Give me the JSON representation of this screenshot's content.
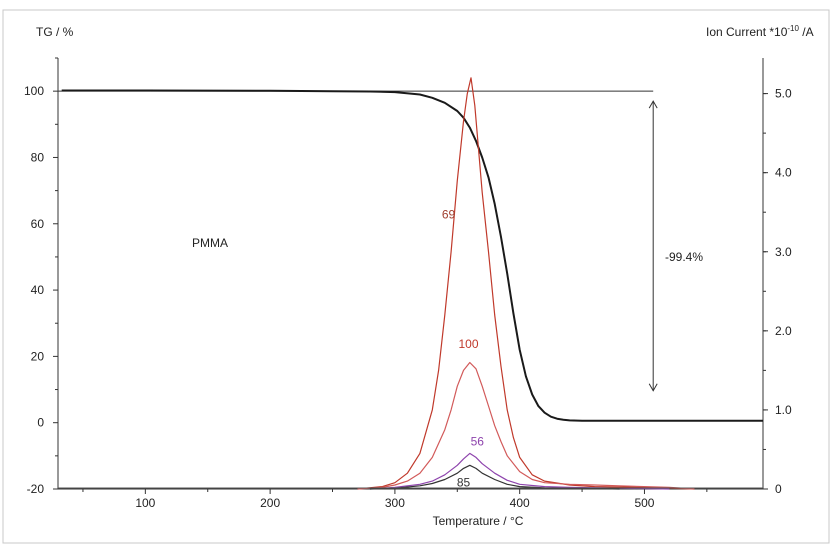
{
  "chart_data": {
    "type": "line",
    "ylabel_left": "TG / %",
    "ylabel_right": "Ion Current *10",
    "ylabel_right_exp": "-10",
    "ylabel_right_unit": " /A",
    "xlabel": "Temperature / °C",
    "xlim": [
      30,
      595
    ],
    "ylim_left": [
      -20,
      110
    ],
    "ylim_right": [
      0,
      5.45
    ],
    "x_ticks": [
      100,
      200,
      300,
      400,
      500
    ],
    "y_left_ticks": [
      -20,
      0,
      20,
      40,
      60,
      80,
      100
    ],
    "y_right_ticks": [
      0,
      1.0,
      2.0,
      3.0,
      4.0,
      5.0
    ],
    "y_right_tick_labels": [
      "0",
      "1.0",
      "2.0",
      "3.0",
      "4.0",
      "5.0"
    ],
    "annotations": {
      "sample": "PMMA",
      "mass_loss": "-99.4%",
      "mass_loss_range": [
        100,
        0.6
      ],
      "mass_loss_x": 507
    },
    "series": [
      {
        "name": "TG",
        "axis": "left",
        "color": "#1a1a1a",
        "x": [
          33,
          100,
          200,
          250,
          280,
          300,
          320,
          330,
          340,
          350,
          355,
          360,
          365,
          370,
          375,
          380,
          385,
          390,
          395,
          400,
          405,
          410,
          415,
          420,
          425,
          430,
          435,
          440,
          450,
          500,
          550,
          595
        ],
        "y": [
          100.2,
          100.2,
          100.1,
          100.0,
          99.9,
          99.7,
          99.0,
          98.0,
          96.5,
          94.0,
          92.0,
          89.0,
          85.0,
          80.0,
          74.0,
          66.0,
          56.0,
          45.0,
          33.0,
          22.0,
          14.0,
          8.5,
          5.0,
          3.0,
          1.8,
          1.2,
          0.9,
          0.7,
          0.6,
          0.6,
          0.6,
          0.6
        ]
      },
      {
        "name": "69",
        "axis": "right",
        "color": "#c0392b",
        "x": [
          270,
          290,
          300,
          310,
          320,
          330,
          335,
          340,
          345,
          350,
          355,
          358,
          361,
          364,
          367,
          370,
          375,
          380,
          385,
          390,
          395,
          400,
          410,
          420,
          440,
          460,
          500,
          540
        ],
        "y": [
          0.0,
          0.03,
          0.08,
          0.2,
          0.45,
          1.0,
          1.5,
          2.2,
          3.0,
          3.9,
          4.65,
          5.0,
          5.2,
          4.85,
          4.3,
          3.75,
          3.0,
          2.2,
          1.55,
          1.0,
          0.65,
          0.4,
          0.18,
          0.1,
          0.05,
          0.03,
          0.02,
          0.0
        ]
      },
      {
        "name": "100",
        "axis": "right",
        "color": "#d25a5a",
        "x": [
          270,
          290,
          300,
          310,
          320,
          330,
          340,
          345,
          350,
          355,
          360,
          365,
          370,
          375,
          380,
          385,
          390,
          400,
          410,
          420,
          440,
          460,
          480,
          520,
          540
        ],
        "y": [
          0.0,
          0.02,
          0.05,
          0.1,
          0.2,
          0.4,
          0.75,
          1.0,
          1.3,
          1.5,
          1.6,
          1.52,
          1.3,
          1.05,
          0.8,
          0.6,
          0.42,
          0.22,
          0.12,
          0.08,
          0.06,
          0.05,
          0.04,
          0.02,
          0.0
        ]
      },
      {
        "name": "56",
        "axis": "right",
        "color": "#8e44ad",
        "x": [
          280,
          300,
          320,
          330,
          340,
          350,
          355,
          360,
          365,
          370,
          380,
          390,
          400,
          420,
          440,
          480,
          520
        ],
        "y": [
          0.0,
          0.02,
          0.06,
          0.1,
          0.18,
          0.3,
          0.38,
          0.45,
          0.4,
          0.32,
          0.2,
          0.11,
          0.06,
          0.03,
          0.02,
          0.01,
          0.0
        ]
      },
      {
        "name": "85",
        "axis": "right",
        "color": "#333333",
        "x": [
          280,
          300,
          320,
          330,
          340,
          350,
          355,
          360,
          365,
          370,
          380,
          390,
          400,
          420,
          440,
          480
        ],
        "y": [
          0.0,
          0.01,
          0.04,
          0.07,
          0.12,
          0.2,
          0.26,
          0.3,
          0.26,
          0.2,
          0.12,
          0.06,
          0.03,
          0.015,
          0.01,
          0.0
        ]
      }
    ],
    "series_labels": [
      {
        "series": "69",
        "text": "69",
        "x": 343,
        "y": 3.42,
        "color": "#a04030"
      },
      {
        "series": "100",
        "text": "100",
        "x": 359,
        "y": 1.78,
        "color": "#c0392b"
      },
      {
        "series": "56",
        "text": "56",
        "x": 366,
        "y": 0.55,
        "color": "#8e44ad"
      },
      {
        "series": "85",
        "text": "85",
        "x": 355,
        "y": 0.03,
        "color": "#333333"
      }
    ],
    "grid": false,
    "legend": "none"
  }
}
